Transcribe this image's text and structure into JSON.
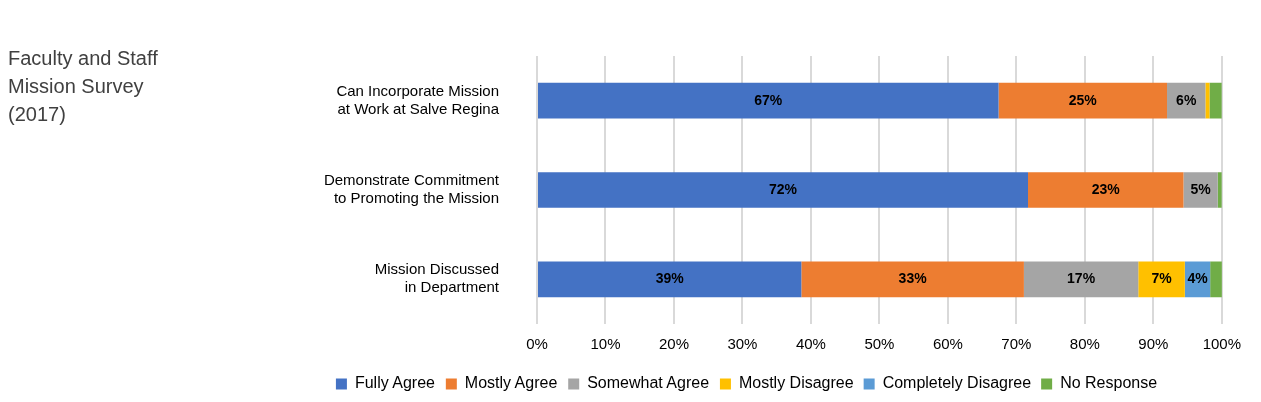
{
  "chart_data": {
    "type": "bar",
    "orientation": "horizontal",
    "stacked": true,
    "title": "Faculty and Staff Mission Survey (2017)",
    "categories": [
      "Can Incorporate Mission at Work at Salve Regina",
      "Demonstrate Commitment to Promoting the Mission",
      "Mission Discussed in Department"
    ],
    "series": [
      {
        "name": "Fully Agree",
        "color": "#4472c4",
        "values": [
          67.4,
          71.7,
          38.6
        ],
        "value_labels": [
          "67%",
          "72%",
          "39%"
        ]
      },
      {
        "name": "Mostly Agree",
        "color": "#ed7d31",
        "values": [
          24.6,
          22.7,
          32.5
        ],
        "value_labels": [
          "25%",
          "23%",
          "33%"
        ]
      },
      {
        "name": "Somewhat Agree",
        "color": "#a5a5a5",
        "values": [
          5.6,
          5.0,
          16.7
        ],
        "value_labels": [
          "6%",
          "5%",
          "17%"
        ]
      },
      {
        "name": "Mostly Disagree",
        "color": "#ffc000",
        "values": [
          0.6,
          null,
          6.8
        ],
        "value_labels": [
          null,
          null,
          "7%"
        ]
      },
      {
        "name": "Completely Disagree",
        "color": "#5b9bd5",
        "values": [
          null,
          null,
          3.7
        ],
        "value_labels": [
          null,
          null,
          "4%"
        ]
      },
      {
        "name": "No Response",
        "color": "#70ad47",
        "values": [
          1.8,
          0.6,
          1.8
        ],
        "value_labels": [
          null,
          null,
          null
        ]
      }
    ],
    "xlim": [
      0,
      100
    ],
    "xticks": [
      {
        "value": 0,
        "label": "0%"
      },
      {
        "value": 10,
        "label": "10%"
      },
      {
        "value": 20,
        "label": "20%"
      },
      {
        "value": 30,
        "label": "30%"
      },
      {
        "value": 40,
        "label": "40%"
      },
      {
        "value": 50,
        "label": "50%"
      },
      {
        "value": 60,
        "label": "60%"
      },
      {
        "value": 70,
        "label": "70%"
      },
      {
        "value": 80,
        "label": "80%"
      },
      {
        "value": 90,
        "label": "90%"
      },
      {
        "value": 100,
        "label": "100%"
      }
    ],
    "grid": "x",
    "legend": "bottom"
  }
}
